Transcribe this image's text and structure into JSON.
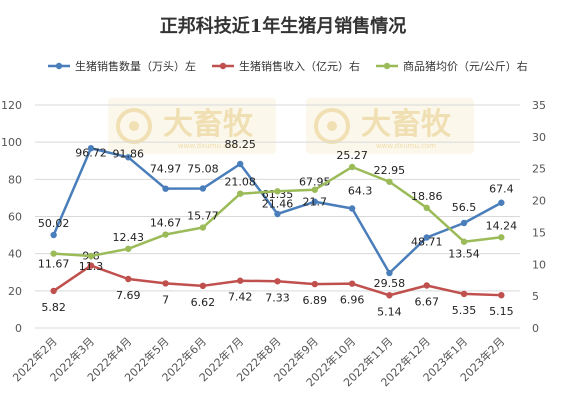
{
  "chart_data": {
    "type": "line",
    "title": "正邦科技近1年生猪月销售情况",
    "categories": [
      "2022年2月",
      "2022年3月",
      "2022年4月",
      "2022年5月",
      "2022年6月",
      "2022年7月",
      "2022年8月",
      "2022年9月",
      "2022年10月",
      "2022年11月",
      "2022年12月",
      "2023年1月",
      "2023年2月"
    ],
    "left_axis": {
      "min": 0,
      "max": 120,
      "step": 20,
      "ticks": [
        "0",
        "20",
        "40",
        "60",
        "80",
        "100",
        "120"
      ]
    },
    "right_axis": {
      "min": 0,
      "max": 35,
      "step": 5,
      "ticks": [
        "0",
        "5",
        "10",
        "15",
        "20",
        "25",
        "30",
        "35"
      ]
    },
    "legend_position": "top",
    "grid": true,
    "series": [
      {
        "name": "生猪销售数量（万头）左",
        "axis": "left",
        "color": "#4a7ebb",
        "values": [
          50.02,
          96.72,
          91.86,
          74.97,
          75.08,
          88.25,
          61.35,
          67.95,
          64.3,
          29.58,
          48.71,
          56.5,
          67.4
        ],
        "labels": [
          "50.02",
          "96.72",
          "91.86",
          "74.97",
          "75.08",
          "88.25",
          "61.35",
          "67.95",
          "64.3",
          "29.58",
          "48.71",
          "56.5",
          "67.4"
        ]
      },
      {
        "name": "生猪销售收入（亿元）右",
        "axis": "right",
        "color": "#c0504d",
        "values": [
          5.82,
          9.8,
          7.69,
          7,
          6.62,
          7.42,
          7.33,
          6.89,
          6.96,
          5.14,
          6.67,
          5.35,
          5.15
        ],
        "labels": [
          "5.82",
          "9.8",
          "7.69",
          "7",
          "6.62",
          "7.42",
          "7.33",
          "6.89",
          "6.96",
          "5.14",
          "6.67",
          "5.35",
          "5.15"
        ]
      },
      {
        "name": "商品猪均价（元/公斤）右",
        "axis": "right",
        "color": "#9bbb59",
        "values": [
          11.67,
          11.3,
          12.43,
          14.67,
          15.77,
          21.08,
          21.46,
          21.7,
          25.27,
          22.95,
          18.86,
          13.54,
          14.24
        ],
        "labels": [
          "11.67",
          "11.3",
          "12.43",
          "14.67",
          "15.77",
          "21.08",
          "21.46",
          "21.7",
          "25.27",
          "22.95",
          "18.86",
          "13.54",
          "14.24"
        ]
      }
    ]
  },
  "watermark": {
    "text": "大畜牧",
    "sub": "www.dxumu.com",
    "color": "#e4c46e"
  }
}
